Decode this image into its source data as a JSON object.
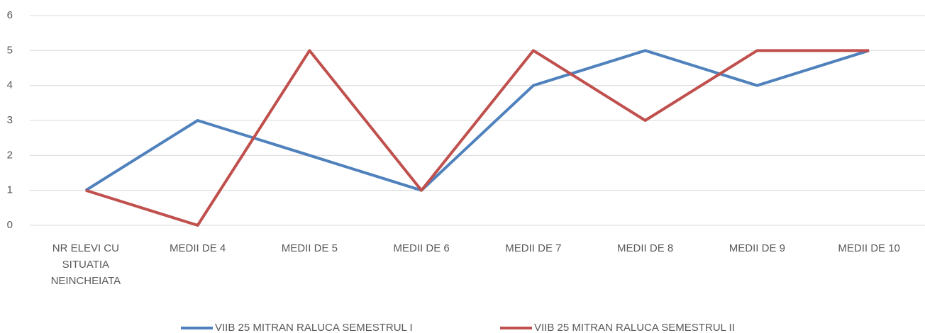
{
  "chart_data": {
    "type": "line",
    "categories": [
      "NR ELEVI CU SITUATIA NEINCHEIATA",
      "MEDII DE 4",
      "MEDII DE 5",
      "MEDII DE 6",
      "MEDII DE 7",
      "MEDII DE 8",
      "MEDII DE 9",
      "MEDII DE 10"
    ],
    "series": [
      {
        "name": "VIIB 25 MITRAN RALUCA SEMESTRUL I",
        "color": "#4f81bd",
        "values": [
          1,
          3,
          2,
          1,
          4,
          5,
          4,
          5
        ]
      },
      {
        "name": "VIIB 25 MITRAN RALUCA SEMESTRUL II",
        "color": "#c0504d",
        "values": [
          1,
          0,
          5,
          1,
          5,
          3,
          5,
          5
        ]
      }
    ],
    "ylim": [
      0,
      6
    ],
    "yticks": [
      0,
      1,
      2,
      3,
      4,
      5,
      6
    ],
    "grid": true,
    "legend": "bottom"
  }
}
